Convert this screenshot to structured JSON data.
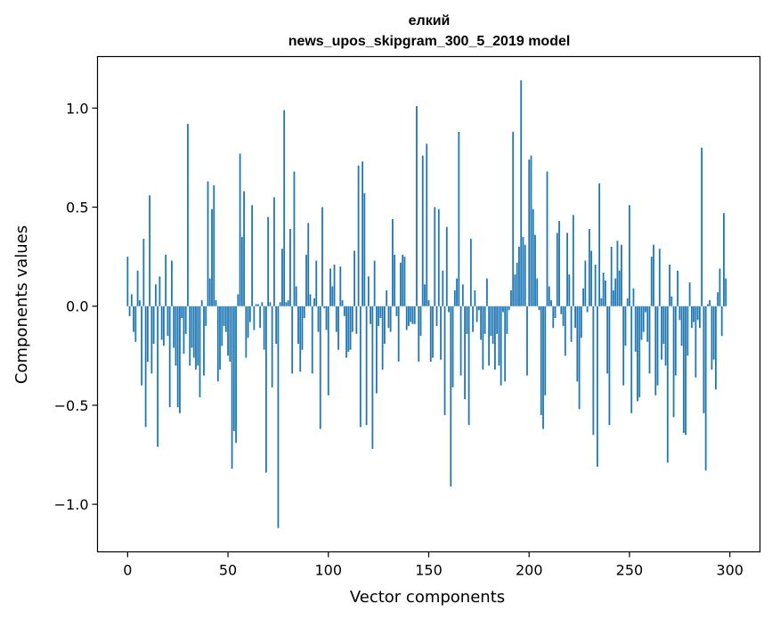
{
  "chart_data": {
    "type": "bar",
    "title_lines": [
      "елкий",
      "news_upos_skipgram_300_5_2019 model"
    ],
    "xlabel": "Vector components",
    "ylabel": "Components values",
    "xlim": [
      -15,
      315
    ],
    "ylim": [
      -1.24,
      1.26
    ],
    "xticks": [
      0,
      50,
      100,
      150,
      200,
      250,
      300
    ],
    "yticks": [
      -1.0,
      -0.5,
      0.0,
      0.5,
      1.0
    ],
    "ytick_labels": [
      "−1.0",
      "−0.5",
      "0.0",
      "0.5",
      "1.0"
    ],
    "bar_color": "#1f77b4",
    "grid": false,
    "legend": "none",
    "values": [
      0.25,
      -0.05,
      0.06,
      -0.13,
      -0.18,
      0.18,
      0.03,
      -0.4,
      0.34,
      -0.61,
      -0.28,
      0.56,
      -0.34,
      -0.19,
      0.11,
      -0.71,
      0.15,
      -0.17,
      -0.2,
      0.26,
      -0.15,
      -0.51,
      0.23,
      -0.21,
      -0.3,
      -0.51,
      -0.54,
      -0.06,
      -0.24,
      -0.14,
      0.92,
      -0.3,
      -0.21,
      -0.26,
      -0.32,
      -0.3,
      -0.46,
      0.03,
      -0.35,
      -0.1,
      0.63,
      0.14,
      0.49,
      0.61,
      0.03,
      -0.38,
      -0.32,
      -0.2,
      -0.1,
      -0.13,
      -0.25,
      -0.28,
      -0.82,
      -0.63,
      -0.69,
      0.06,
      0.77,
      0.35,
      0.58,
      -0.26,
      -0.16,
      -0.08,
      0.51,
      -0.12,
      0.01,
      0.01,
      -0.11,
      0.02,
      -0.22,
      -0.84,
      0.45,
      0.02,
      -0.41,
      0.55,
      -0.19,
      -1.12,
      0.02,
      0.29,
      0.99,
      0.02,
      0.03,
      0.39,
      -0.34,
      0.68,
      0.1,
      -0.19,
      -0.33,
      -0.22,
      -0.06,
      0.26,
      0.42,
      0.06,
      -0.34,
      0.04,
      0.23,
      -0.13,
      -0.62,
      0.5,
      -0.01,
      -0.12,
      -0.45,
      0.19,
      0.1,
      0.21,
      -0.13,
      -0.22,
      0.2,
      0.03,
      -0.05,
      -0.26,
      -0.23,
      -0.22,
      -0.13,
      0.28,
      -0.14,
      0.71,
      -0.61,
      0.73,
      0.57,
      -0.6,
      0.15,
      -0.09,
      -0.72,
      0.23,
      -0.44,
      -0.1,
      -0.06,
      -0.32,
      -0.19,
      0.08,
      -0.11,
      -0.13,
      0.44,
      0.26,
      -0.05,
      -0.28,
      0.22,
      0.26,
      0.25,
      -0.12,
      -0.1,
      -0.08,
      -0.09,
      -0.09,
      1.01,
      -0.28,
      -0.15,
      0.76,
      0.11,
      0.82,
      0.03,
      -0.28,
      -0.26,
      0.5,
      -0.1,
      0.49,
      -0.27,
      0.18,
      -0.55,
      0.4,
      -0.03,
      -0.91,
      -0.41,
      0.08,
      0.14,
      0.88,
      -0.35,
      0.11,
      -0.47,
      -0.14,
      -0.6,
      0.34,
      -0.13,
      0.08,
      -0.08,
      -0.02,
      -0.17,
      -0.32,
      -0.14,
      0.14,
      -0.3,
      -0.15,
      -0.19,
      -0.32,
      -0.14,
      -0.3,
      -0.4,
      -0.03,
      -0.38,
      -0.14,
      -0.02,
      0.08,
      0.88,
      0.16,
      0.22,
      0.3,
      1.14,
      0.35,
      0.31,
      -0.35,
      0.74,
      0.76,
      0.49,
      0.36,
      0.14,
      -0.02,
      -0.55,
      -0.62,
      -0.45,
      0.68,
      0.1,
      0.03,
      -0.11,
      -0.06,
      0.37,
      0.43,
      -0.04,
      -0.1,
      -0.25,
      0.37,
      0.16,
      -0.18,
      0.46,
      -0.11,
      -0.38,
      -0.52,
      -0.16,
      0.09,
      0.23,
      -0.03,
      0.39,
      0.28,
      -0.65,
      0.21,
      -0.81,
      0.62,
      0.04,
      0.17,
      0.13,
      -0.34,
      -0.6,
      0.3,
      0.08,
      0.14,
      0.33,
      0.18,
      0.31,
      -0.4,
      -0.2,
      0.04,
      0.51,
      -0.54,
      0.09,
      -0.23,
      -0.48,
      -0.46,
      -0.17,
      -0.13,
      -0.03,
      -0.18,
      -0.34,
      0.25,
      0.31,
      -0.45,
      -0.4,
      0.29,
      -0.27,
      -0.19,
      -0.3,
      -0.79,
      0.21,
      0.05,
      -0.56,
      -0.35,
      0.18,
      -0.07,
      -0.2,
      -0.64,
      -0.65,
      -0.25,
      0.12,
      -0.11,
      -0.08,
      -0.36,
      -0.07,
      -0.11,
      0.8,
      -0.54,
      -0.83,
      0.01,
      0.03,
      -0.32,
      -0.27,
      -0.42,
      0.07,
      0.19,
      -0.15,
      0.47,
      0.14
    ]
  }
}
